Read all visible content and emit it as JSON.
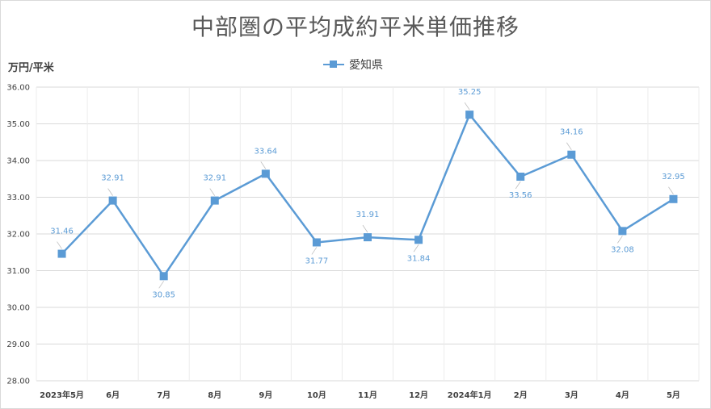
{
  "chart_data": {
    "type": "line",
    "title": "中部圏の平均成約平米単価推移",
    "ylabel": "万円/平米",
    "xlabel": "",
    "categories": [
      "2023年5月",
      "6月",
      "7月",
      "8月",
      "9月",
      "10月",
      "11月",
      "12月",
      "2024年1月",
      "2月",
      "3月",
      "4月",
      "5月"
    ],
    "series": [
      {
        "name": "愛知県",
        "values": [
          31.46,
          32.91,
          30.85,
          32.91,
          33.64,
          31.77,
          31.91,
          31.84,
          35.25,
          33.56,
          34.16,
          32.08,
          32.95
        ],
        "color": "#5b9bd5"
      }
    ],
    "ylim": [
      28.0,
      36.0
    ],
    "yticks": [
      "28.00",
      "29.00",
      "30.00",
      "31.00",
      "32.00",
      "33.00",
      "34.00",
      "35.00",
      "36.00"
    ],
    "legend_position": "top-center",
    "grid": true,
    "data_labels": true
  }
}
